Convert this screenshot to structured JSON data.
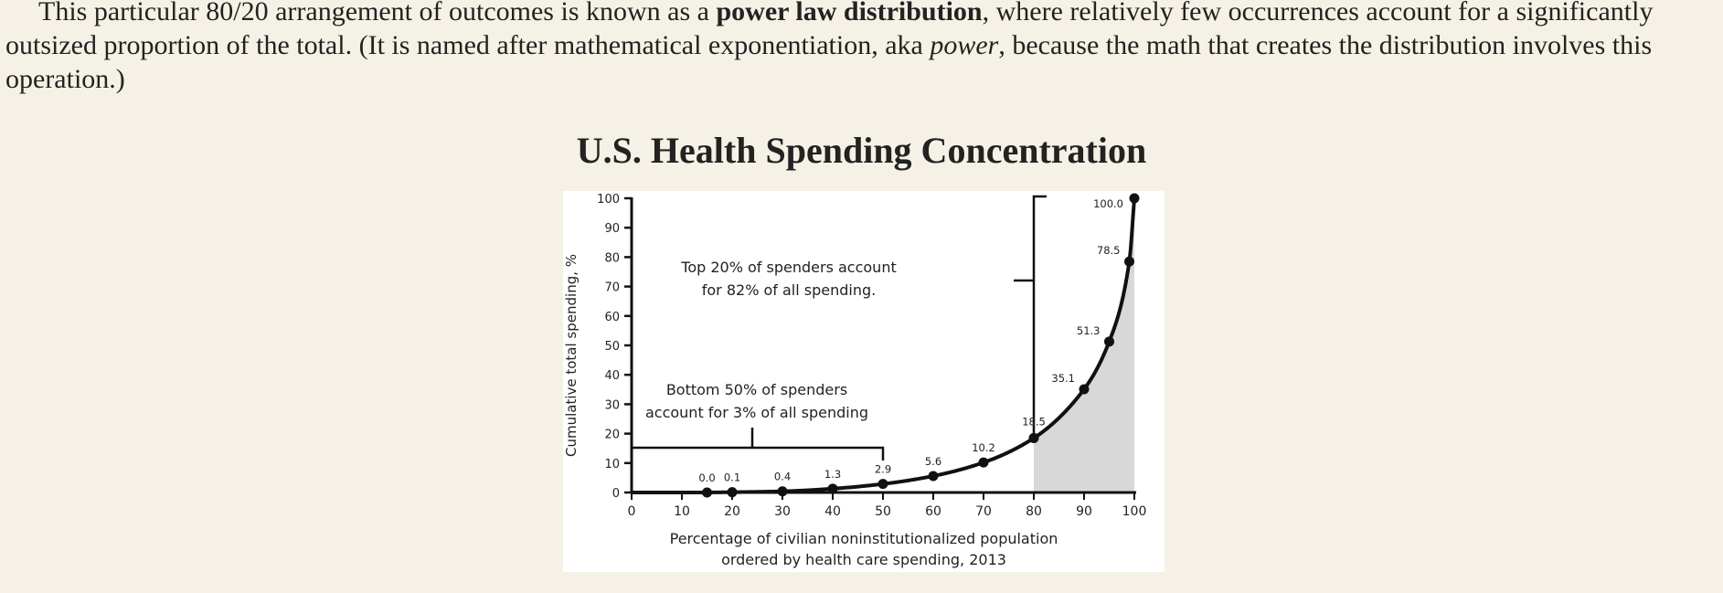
{
  "paragraph": {
    "part1": "This particular 80/20 arrangement of outcomes is known as a ",
    "bold": "power law distribution",
    "part2": ", where relatively few occurrences account for a significantly outsized proportion of the total. (It is named after mathematical exponentiation, aka ",
    "italic": "power",
    "part3": ", because the math that creates the distribution involves this operation.)"
  },
  "chart_title": "U.S. Health Spending Concentration",
  "chart_data": {
    "type": "line",
    "x": [
      15,
      20,
      30,
      40,
      50,
      60,
      70,
      80,
      90,
      95,
      99,
      100
    ],
    "values": [
      0.0,
      0.1,
      0.4,
      1.3,
      2.9,
      5.6,
      10.2,
      18.5,
      35.1,
      51.3,
      78.5,
      100.0
    ],
    "point_labels": [
      "0.0",
      "0.1",
      "0.4",
      "1.3",
      "2.9",
      "5.6",
      "10.2",
      "18.5",
      "35.1",
      "51.3",
      "78.5",
      "100.0"
    ],
    "xlabel_line1": "Percentage of civilian noninstitutionalized population",
    "xlabel_line2": "ordered by health care spending, 2013",
    "ylabel": "Cumulative total spending, %",
    "xlim": [
      0,
      100
    ],
    "ylim": [
      0,
      100
    ],
    "x_ticks": [
      0,
      10,
      20,
      30,
      40,
      50,
      60,
      70,
      80,
      90,
      100
    ],
    "y_ticks": [
      0,
      10,
      20,
      30,
      40,
      50,
      60,
      70,
      80,
      90,
      100
    ],
    "shaded_region_x": [
      80,
      100
    ],
    "grid": false,
    "annotations": {
      "bottom_line1": "Bottom 50% of spenders",
      "bottom_line2": "account for 3% of all spending",
      "top_line1": "Top 20% of spenders account",
      "top_line2": "for 82% of all spending."
    },
    "colors": {
      "line": "#111111",
      "shade": "#d8d8d8",
      "background": "#ffffff"
    }
  }
}
